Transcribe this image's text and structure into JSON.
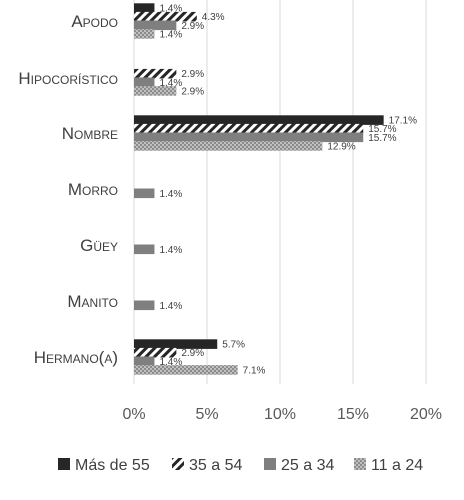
{
  "chart_data": {
    "type": "bar",
    "orientation": "horizontal",
    "categories": [
      "Apodo",
      "Hipocorístico",
      "Nombre",
      "Morro",
      "Güey",
      "Manito",
      "Hermano(a)"
    ],
    "series": [
      {
        "name": "Más de 55",
        "color": "#262626",
        "pattern": "solid",
        "values": [
          1.4,
          0,
          17.1,
          0,
          0,
          0,
          5.7
        ],
        "labels": [
          "1.4%",
          "",
          "17.1%",
          "",
          "",
          "",
          "5.7%"
        ]
      },
      {
        "name": "35 a 54",
        "color": "#262626",
        "pattern": "diagonal-hatch",
        "values": [
          4.3,
          2.9,
          15.7,
          0,
          0,
          0,
          2.9
        ],
        "labels": [
          "4.3%",
          "2.9%",
          "15.7%",
          "",
          "",
          "",
          "2.9%"
        ]
      },
      {
        "name": "25 a 34",
        "color": "#7f7f7f",
        "pattern": "solid",
        "values": [
          2.9,
          1.4,
          15.7,
          1.4,
          1.4,
          1.4,
          1.4
        ],
        "labels": [
          "2.9%",
          "1.4%",
          "15.7%",
          "1.4%",
          "1.4%",
          "1.4%",
          "1.4%"
        ]
      },
      {
        "name": "11 a 24",
        "color": "#a6a6a6",
        "pattern": "dotted",
        "values": [
          1.4,
          2.9,
          12.9,
          0,
          0,
          0,
          7.1
        ],
        "labels": [
          "1.4%",
          "2.9%",
          "12.9%",
          "",
          "",
          "",
          "7.1%"
        ]
      }
    ],
    "xlim": [
      0,
      20
    ],
    "x_ticks": [
      0,
      5,
      10,
      15,
      20
    ],
    "x_tick_labels": [
      "0%",
      "5%",
      "10%",
      "15%",
      "20%"
    ],
    "grid": "vertical",
    "legend_position": "bottom",
    "title": "",
    "xlabel": "",
    "ylabel": ""
  }
}
